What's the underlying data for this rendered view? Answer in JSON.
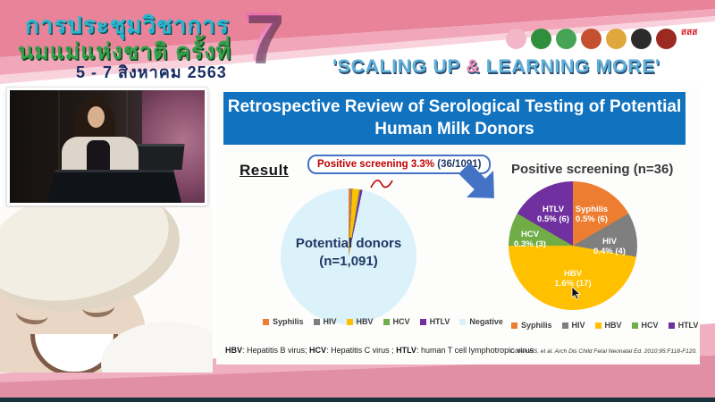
{
  "header": {
    "title_line1": "การประชุมวิชาการ",
    "title_line2": "นมแม่แห่งชาติ ครั้งที่",
    "date_line": "5 - 7 สิงหาคม 2563",
    "edition_number": "7",
    "tagline": {
      "pre": "'SCALING UP ",
      "amp": "&",
      "post": " LEARNING MORE'"
    },
    "logos": [
      {
        "name": "breastfeeding-foundation-logo",
        "color": "#F2B6C9"
      },
      {
        "name": "health-department-logo",
        "color": "#2F8F3C"
      },
      {
        "name": "public-health-ministry-logo",
        "color": "#47A455"
      },
      {
        "name": "royal-college-logo",
        "color": "#C4502F"
      },
      {
        "name": "pediatric-society-logo",
        "color": "#E0A83C"
      },
      {
        "name": "university-emblem-logo",
        "color": "#2B2B2B"
      },
      {
        "name": "nursing-council-logo",
        "color": "#9C2A22"
      },
      {
        "name": "thai-health-logo",
        "color": "#D8232A",
        "text": "สสส"
      }
    ]
  },
  "slide": {
    "title": "Retrospective Review of Serological Testing of Potential Human Milk Donors",
    "result_label": "Result",
    "callout": {
      "highlight": "Positive screening 3.3%",
      "detail": " (36/1091)"
    },
    "footnote_parts": [
      {
        "t": "HBV",
        "b": true
      },
      {
        "t": ": Hepatitis B virus; ",
        "b": false
      },
      {
        "t": "HCV",
        "b": true
      },
      {
        "t": ": Hepatitis C virus ; ",
        "b": false
      },
      {
        "t": "HTLV",
        "b": true
      },
      {
        "t": ": human T cell lymphotropic virus",
        "b": false
      }
    ],
    "citation": "Cohen RS, et al. Arch Dis Child Fetal Neonatal Ed. 2010;95:F118-F120."
  },
  "chart_data": [
    {
      "type": "pie",
      "title": "Potential donors (n=1,091)",
      "center_line1": "Potential donors",
      "center_line2": "(n=1,091)",
      "total": 1091,
      "slices": [
        {
          "label": "Syphilis",
          "value": 6,
          "color": "#ED7D31"
        },
        {
          "label": "HIV",
          "value": 4,
          "color": "#7F7F7F"
        },
        {
          "label": "HBV",
          "value": 17,
          "color": "#FFC000"
        },
        {
          "label": "HCV",
          "value": 3,
          "color": "#70AD47"
        },
        {
          "label": "HTLV",
          "value": 6,
          "color": "#7030A0"
        },
        {
          "label": "Negative",
          "value": 1055,
          "color": "#DCF2FA"
        }
      ],
      "legend_position": "bottom"
    },
    {
      "type": "pie",
      "title": "Positive screening (n=36)",
      "total": 36,
      "slices": [
        {
          "label": "Syphilis",
          "value": 6,
          "pct": "0.5%",
          "count": "(6)",
          "color": "#ED7D31"
        },
        {
          "label": "HIV",
          "value": 4,
          "pct": "0.4%",
          "count": "(4)",
          "color": "#7F7F7F"
        },
        {
          "label": "HBV",
          "value": 17,
          "pct": "1.6%",
          "count": "(17)",
          "color": "#FFC000"
        },
        {
          "label": "HCV",
          "value": 3,
          "pct": "0.3%",
          "count": "(3)",
          "color": "#70AD47"
        },
        {
          "label": "HTLV",
          "value": 6,
          "pct": "0.5%",
          "count": "(6)",
          "color": "#7030A0"
        }
      ],
      "legend_position": "bottom"
    }
  ],
  "colors": {
    "banner_blue": "#1172BF",
    "arrow_blue": "#4472C4",
    "highlight_red": "#C00000",
    "navy_text": "#1F3864",
    "header_pink": "#E8839A",
    "tagline_blue": "#5FAFD7"
  }
}
